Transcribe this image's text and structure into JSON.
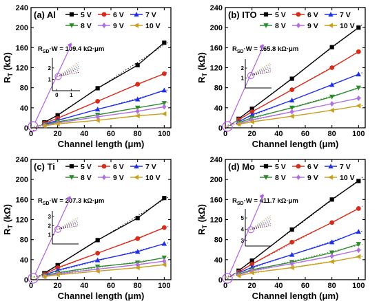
{
  "chart_data": [
    {
      "type": "line",
      "panel_label": "(a) Al",
      "xlabel": "Channel length (μm)",
      "ylabel": "R",
      "ylabel_sub": "T",
      "ylabel_unit": " (kΩ)",
      "xlim": [
        0,
        105
      ],
      "ylim": [
        0,
        240
      ],
      "xticks": [
        0,
        20,
        40,
        60,
        80,
        100
      ],
      "yticks": [
        0,
        40,
        80,
        120,
        160,
        200,
        240
      ],
      "annotation": {
        "main": "R",
        "sub": "SD",
        "rest": "·W = 109.4 kΩ·μm"
      },
      "inset": {
        "type": "zoom",
        "xticks": [
          0,
          1
        ],
        "yticks": [
          1,
          2
        ],
        "xlim": [
          -0.3,
          1.6
        ],
        "ylim": [
          0,
          2.9
        ]
      },
      "x": [
        10,
        20,
        50,
        80,
        100
      ],
      "series": [
        {
          "name": "5 V",
          "color": "#000000",
          "marker": "square",
          "values": [
            11,
            25,
            79,
            125,
            170
          ]
        },
        {
          "name": "6 V",
          "color": "#d62c1c",
          "marker": "circle",
          "values": [
            9,
            19,
            53,
            87,
            108
          ]
        },
        {
          "name": "7 V",
          "color": "#1f2fe6",
          "marker": "triangle-up",
          "values": [
            7,
            15,
            37,
            57,
            75
          ]
        },
        {
          "name": "8 V",
          "color": "#2e8b2e",
          "marker": "triangle-down",
          "values": [
            6,
            12,
            26,
            40,
            49
          ]
        },
        {
          "name": "9 V",
          "color": "#b070e0",
          "marker": "diamond",
          "values": [
            5,
            10,
            22,
            33,
            42
          ]
        },
        {
          "name": "10 V",
          "color": "#c9a020",
          "marker": "triangle-left",
          "values": [
            4,
            8,
            15,
            24,
            28
          ]
        }
      ]
    },
    {
      "type": "line",
      "panel_label": "(b) ITO",
      "xlabel": "Channel length (μm)",
      "ylabel": "R",
      "ylabel_sub": "T",
      "ylabel_unit": " (kΩ)",
      "xlim": [
        0,
        105
      ],
      "ylim": [
        0,
        240
      ],
      "xticks": [
        0,
        20,
        40,
        60,
        80,
        100
      ],
      "yticks": [
        0,
        40,
        80,
        120,
        160,
        200,
        240
      ],
      "annotation": {
        "main": "R",
        "sub": "SD",
        "rest": "·W = 165.8 kΩ·μm"
      },
      "inset": {
        "type": "zoom",
        "xticks": [],
        "yticks": [
          1,
          2
        ],
        "xlim": [
          -0.3,
          1.6
        ],
        "ylim": [
          0,
          2.9
        ]
      },
      "x": [
        10,
        20,
        50,
        80,
        100
      ],
      "series": [
        {
          "name": "5 V",
          "color": "#000000",
          "marker": "square",
          "values": [
            18,
            38,
            98,
            161,
            200
          ]
        },
        {
          "name": "6 V",
          "color": "#d62c1c",
          "marker": "circle",
          "values": [
            16,
            32,
            76,
            120,
            152
          ]
        },
        {
          "name": "7 V",
          "color": "#1f2fe6",
          "marker": "triangle-up",
          "values": [
            12,
            26,
            55,
            86,
            107
          ]
        },
        {
          "name": "8 V",
          "color": "#2e8b2e",
          "marker": "triangle-down",
          "values": [
            10,
            20,
            40,
            62,
            80
          ]
        },
        {
          "name": "9 V",
          "color": "#b070e0",
          "marker": "diamond",
          "values": [
            8,
            16,
            32,
            48,
            59
          ]
        },
        {
          "name": "10 V",
          "color": "#c9a020",
          "marker": "triangle-left",
          "values": [
            7,
            12,
            23,
            35,
            44
          ]
        }
      ]
    },
    {
      "type": "line",
      "panel_label": "(c) Ti",
      "xlabel": "Channel length (μm)",
      "ylabel": "R",
      "ylabel_sub": "T",
      "ylabel_unit": " (kΩ)",
      "xlim": [
        0,
        105
      ],
      "ylim": [
        0,
        240
      ],
      "xticks": [
        0,
        20,
        40,
        60,
        80,
        100
      ],
      "yticks": [
        0,
        40,
        80,
        120,
        160,
        200,
        240
      ],
      "annotation": {
        "main": "R",
        "sub": "SD",
        "rest": "·W = 207.3 kΩ·μm"
      },
      "inset": {
        "type": "zoom",
        "xticks": [],
        "yticks": [
          1,
          2,
          3
        ],
        "xlim": [
          -0.3,
          1.6
        ],
        "ylim": [
          0,
          3.6
        ]
      },
      "x": [
        10,
        20,
        50,
        80,
        100
      ],
      "series": [
        {
          "name": "5 V",
          "color": "#000000",
          "marker": "square",
          "values": [
            13,
            29,
            79,
            123,
            163
          ]
        },
        {
          "name": "6 V",
          "color": "#d62c1c",
          "marker": "circle",
          "values": [
            11,
            24,
            53,
            82,
            104
          ]
        },
        {
          "name": "7 V",
          "color": "#1f2fe6",
          "marker": "triangle-up",
          "values": [
            9,
            19,
            39,
            56,
            72
          ]
        },
        {
          "name": "8 V",
          "color": "#2e8b2e",
          "marker": "triangle-down",
          "values": [
            8,
            14,
            26,
            34,
            44
          ]
        },
        {
          "name": "9 V",
          "color": "#b070e0",
          "marker": "diamond",
          "values": [
            7,
            12,
            21,
            30,
            37
          ]
        },
        {
          "name": "10 V",
          "color": "#c9a020",
          "marker": "triangle-left",
          "values": [
            6,
            10,
            17,
            24,
            30
          ]
        }
      ]
    },
    {
      "type": "line",
      "panel_label": "(d) Mo",
      "xlabel": "Channel length (μm)",
      "ylabel": "R",
      "ylabel_sub": "T",
      "ylabel_unit": " (kΩ)",
      "xlim": [
        0,
        105
      ],
      "ylim": [
        0,
        240
      ],
      "xticks": [
        0,
        20,
        40,
        60,
        80,
        100
      ],
      "yticks": [
        0,
        40,
        80,
        120,
        160,
        200,
        240
      ],
      "annotation": {
        "main": "R",
        "sub": "SD",
        "rest": "·W = 411.7 kΩ·μm"
      },
      "inset": {
        "type": "zoom",
        "xticks": [],
        "yticks": [
          3,
          4,
          5
        ],
        "xlim": [
          -0.3,
          1.6
        ],
        "ylim": [
          2.5,
          5.8
        ]
      },
      "x": [
        10,
        20,
        50,
        80,
        100
      ],
      "series": [
        {
          "name": "5 V",
          "color": "#000000",
          "marker": "square",
          "values": [
            18,
            38,
            100,
            160,
            197
          ]
        },
        {
          "name": "6 V",
          "color": "#d62c1c",
          "marker": "circle",
          "values": [
            15,
            31,
            75,
            114,
            142
          ]
        },
        {
          "name": "7 V",
          "color": "#1f2fe6",
          "marker": "triangle-up",
          "values": [
            13,
            25,
            50,
            75,
            96
          ]
        },
        {
          "name": "8 V",
          "color": "#2e8b2e",
          "marker": "triangle-down",
          "values": [
            11,
            20,
            35,
            54,
            71
          ]
        },
        {
          "name": "9 V",
          "color": "#b070e0",
          "marker": "diamond",
          "values": [
            10,
            18,
            32,
            47,
            59
          ]
        },
        {
          "name": "10 V",
          "color": "#c9a020",
          "marker": "triangle-left",
          "values": [
            8,
            14,
            24,
            36,
            46
          ]
        }
      ]
    }
  ]
}
